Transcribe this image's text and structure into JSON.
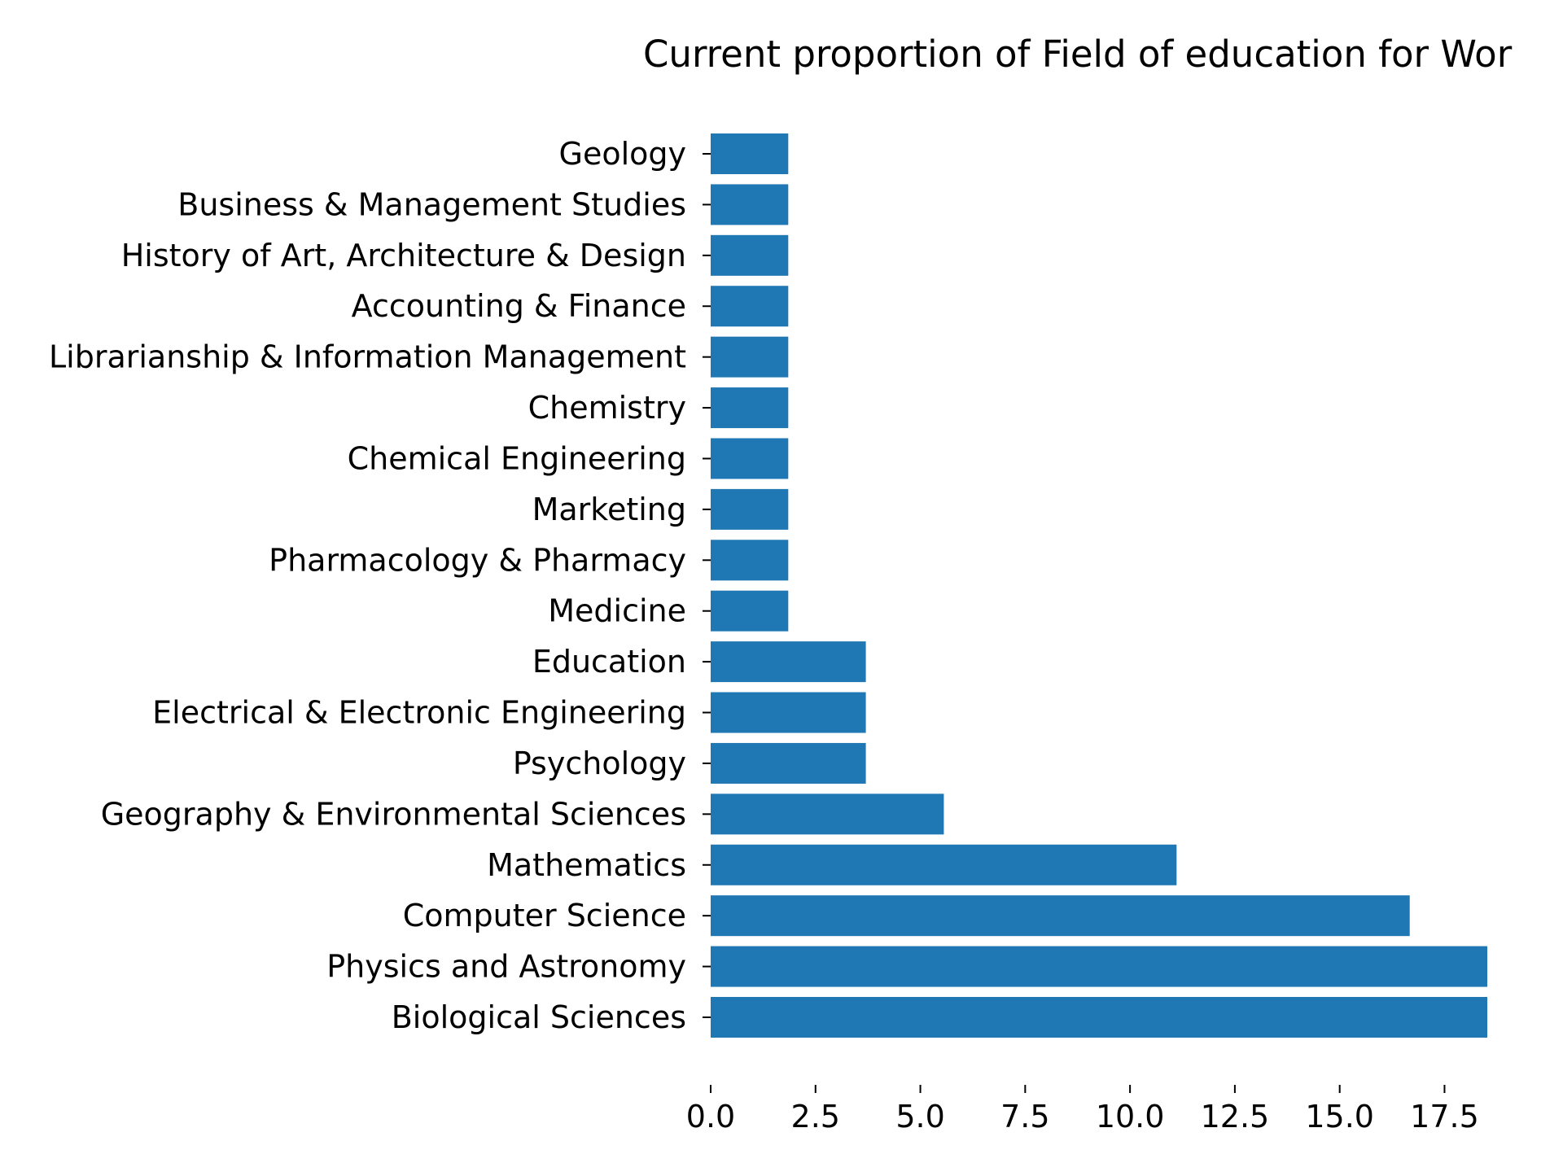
{
  "chart_data": {
    "type": "bar",
    "orientation": "horizontal",
    "title": "Current proportion of Field of education for Wor",
    "xlabel": "",
    "ylabel": "",
    "categories": [
      "Geology",
      "Business & Management Studies",
      "History of Art, Architecture & Design",
      "Accounting & Finance",
      "Librarianship & Information Management",
      "Chemistry",
      "Chemical Engineering",
      "Marketing",
      "Pharmacology & Pharmacy",
      "Medicine",
      "Education",
      "Electrical & Electronic Engineering",
      "Psychology",
      "Geography & Environmental Sciences",
      "Mathematics",
      "Computer Science",
      "Physics and Astronomy",
      "Biological Sciences"
    ],
    "values": [
      1.85,
      1.85,
      1.85,
      1.85,
      1.85,
      1.85,
      1.85,
      1.85,
      1.85,
      1.85,
      3.7,
      3.7,
      3.7,
      5.56,
      11.11,
      16.67,
      18.52,
      18.52
    ],
    "xticks": [
      "0.0",
      "2.5",
      "5.0",
      "7.5",
      "10.0",
      "12.5",
      "15.0",
      "17.5"
    ],
    "xtick_values": [
      0,
      2.5,
      5,
      7.5,
      10,
      12.5,
      15,
      17.5
    ],
    "xlim": [
      0,
      18.52
    ],
    "grid": false,
    "legend": "none",
    "bar_color": "#1f77b4"
  }
}
